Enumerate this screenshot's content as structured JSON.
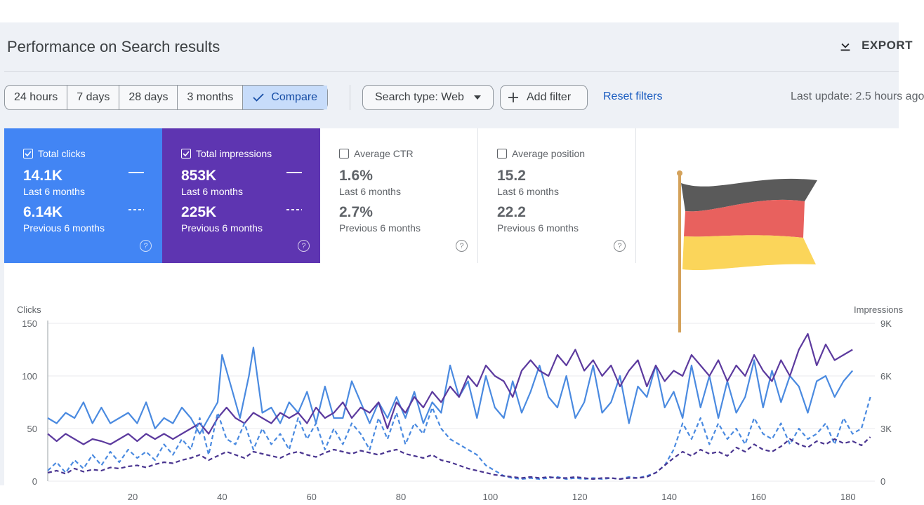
{
  "header": {
    "title": "Performance on Search results",
    "export_label": "EXPORT",
    "export_icon": "download-icon"
  },
  "toolbar": {
    "ranges": [
      "24 hours",
      "7 days",
      "28 days",
      "3 months"
    ],
    "compare_label": "Compare",
    "search_type_label": "Search type: Web",
    "add_filter_label": "Add filter",
    "reset_filters_label": "Reset filters",
    "last_update": "Last update: 2.5 hours ago"
  },
  "metrics": {
    "clicks": {
      "label": "Total clicks",
      "current": "14.1K",
      "current_period": "Last 6 months",
      "previous": "6.14K",
      "previous_period": "Previous 6 months",
      "checked": true,
      "color": "#4285f4"
    },
    "impressions": {
      "label": "Total impressions",
      "current": "853K",
      "current_period": "Last 6 months",
      "previous": "225K",
      "previous_period": "Previous 6 months",
      "checked": true,
      "color": "#5e35b1"
    },
    "ctr": {
      "label": "Average CTR",
      "current": "1.6%",
      "current_period": "Last 6 months",
      "previous": "2.7%",
      "previous_period": "Previous 6 months",
      "checked": false
    },
    "position": {
      "label": "Average position",
      "current": "15.2",
      "current_period": "Last 6 months",
      "previous": "22.2",
      "previous_period": "Previous 6 months",
      "checked": false
    }
  },
  "flag": {
    "name": "germany-flag-icon",
    "colors": [
      "#5a5a5a",
      "#e8615e",
      "#fbd55a"
    ],
    "pole": "#d4a25b"
  },
  "chart_data": {
    "type": "line",
    "y_left_label": "Clicks",
    "y_right_label": "Impressions",
    "y_left_ticks": [
      "150",
      "100",
      "50",
      "0"
    ],
    "y_right_ticks": [
      "9K",
      "6K",
      "3K",
      "0"
    ],
    "ylim": [
      0,
      150
    ],
    "xlim": [
      1,
      186
    ],
    "x_ticks": [
      20,
      40,
      60,
      80,
      100,
      120,
      140,
      160,
      180
    ],
    "series": [
      {
        "color": "#4a8ae0",
        "style": "solid",
        "x": [
          1,
          3,
          5,
          7,
          9,
          11,
          13,
          15,
          17,
          19,
          21,
          23,
          25,
          27,
          29,
          31,
          33,
          35,
          37,
          39,
          40,
          42,
          44,
          46,
          47,
          49,
          51,
          53,
          55,
          57,
          59,
          61,
          63,
          65,
          67,
          69,
          71,
          73,
          75,
          77,
          79,
          81,
          83,
          85,
          87,
          89,
          91,
          93,
          95,
          97,
          99,
          101,
          103,
          105,
          107,
          109,
          111,
          113,
          115,
          117,
          119,
          121,
          123,
          125,
          127,
          129,
          131,
          133,
          135,
          137,
          139,
          141,
          143,
          145,
          147,
          149,
          151,
          153,
          155,
          157,
          159,
          161,
          163,
          165,
          167,
          169,
          171,
          173,
          175,
          177,
          179,
          181
        ],
        "y": [
          60,
          55,
          65,
          60,
          75,
          55,
          70,
          55,
          60,
          65,
          55,
          75,
          50,
          60,
          55,
          70,
          60,
          45,
          60,
          75,
          120,
          90,
          60,
          100,
          127,
          65,
          70,
          55,
          75,
          65,
          85,
          55,
          90,
          60,
          60,
          95,
          75,
          55,
          75,
          60,
          80,
          60,
          85,
          55,
          75,
          65,
          110,
          80,
          95,
          60,
          100,
          70,
          60,
          95,
          65,
          85,
          110,
          80,
          70,
          100,
          60,
          75,
          110,
          65,
          75,
          100,
          55,
          90,
          80,
          110,
          70,
          85,
          60,
          110,
          70,
          100,
          60,
          95,
          65,
          80,
          115,
          70,
          105,
          75,
          100,
          90,
          65,
          95,
          100,
          80,
          95,
          105
        ]
      },
      {
        "color": "#5c3a9e",
        "style": "solid",
        "x": [
          1,
          3,
          5,
          7,
          9,
          11,
          13,
          15,
          17,
          19,
          21,
          23,
          25,
          27,
          29,
          31,
          33,
          35,
          37,
          39,
          41,
          43,
          45,
          47,
          49,
          51,
          53,
          55,
          57,
          59,
          61,
          63,
          65,
          67,
          69,
          71,
          73,
          75,
          77,
          79,
          81,
          83,
          85,
          87,
          89,
          91,
          93,
          95,
          97,
          99,
          101,
          103,
          105,
          107,
          109,
          111,
          113,
          115,
          117,
          119,
          121,
          123,
          125,
          127,
          129,
          131,
          133,
          135,
          137,
          139,
          141,
          143,
          145,
          147,
          149,
          151,
          153,
          155,
          157,
          159,
          161,
          163,
          165,
          167,
          169,
          171,
          173,
          175,
          177,
          179,
          181
        ],
        "y": [
          45,
          38,
          45,
          40,
          35,
          40,
          38,
          35,
          40,
          45,
          38,
          45,
          40,
          45,
          40,
          45,
          50,
          55,
          45,
          60,
          70,
          60,
          55,
          65,
          60,
          55,
          65,
          60,
          65,
          55,
          70,
          60,
          65,
          75,
          60,
          70,
          65,
          75,
          50,
          75,
          65,
          80,
          70,
          85,
          75,
          90,
          80,
          100,
          90,
          110,
          100,
          95,
          80,
          105,
          115,
          105,
          100,
          120,
          110,
          125,
          105,
          115,
          100,
          110,
          90,
          105,
          115,
          90,
          110,
          95,
          105,
          100,
          120,
          110,
          100,
          115,
          95,
          110,
          100,
          120,
          105,
          95,
          115,
          100,
          125,
          140,
          110,
          130,
          115,
          120,
          125
        ]
      },
      {
        "color": "#4a8ae0",
        "style": "dashed",
        "x": [
          1,
          3,
          5,
          7,
          9,
          11,
          13,
          15,
          17,
          19,
          21,
          23,
          25,
          27,
          29,
          31,
          33,
          35,
          37,
          39,
          41,
          43,
          45,
          47,
          49,
          51,
          53,
          55,
          57,
          59,
          61,
          63,
          65,
          67,
          69,
          71,
          73,
          75,
          77,
          79,
          81,
          83,
          85,
          87,
          89,
          91,
          93,
          95,
          97,
          99,
          101,
          103,
          105,
          107,
          109,
          111,
          113,
          115,
          117,
          119,
          121,
          123,
          125,
          127,
          129,
          131,
          133,
          135,
          137,
          139,
          141,
          143,
          145,
          147,
          149,
          151,
          153,
          155,
          157,
          159,
          161,
          163,
          165,
          167,
          169,
          171,
          173,
          175,
          177,
          179,
          181,
          183,
          185
        ],
        "y": [
          10,
          18,
          8,
          20,
          12,
          25,
          15,
          28,
          18,
          30,
          22,
          28,
          20,
          35,
          25,
          40,
          30,
          60,
          25,
          65,
          40,
          35,
          55,
          30,
          50,
          35,
          45,
          30,
          60,
          40,
          55,
          30,
          50,
          35,
          55,
          45,
          30,
          60,
          40,
          65,
          35,
          55,
          45,
          70,
          50,
          40,
          35,
          30,
          25,
          15,
          10,
          5,
          3,
          2,
          3,
          2,
          3,
          4,
          2,
          3,
          2,
          3,
          2,
          3,
          2,
          4,
          3,
          5,
          8,
          15,
          30,
          55,
          40,
          60,
          35,
          55,
          40,
          50,
          35,
          60,
          45,
          40,
          55,
          35,
          50,
          40,
          45,
          55,
          35,
          60,
          45,
          50,
          80
        ]
      },
      {
        "color": "#4a3590",
        "style": "dashed",
        "x": [
          1,
          3,
          5,
          7,
          9,
          11,
          13,
          15,
          17,
          19,
          21,
          23,
          25,
          27,
          29,
          31,
          33,
          35,
          37,
          39,
          41,
          43,
          45,
          47,
          49,
          51,
          53,
          55,
          57,
          59,
          61,
          63,
          65,
          67,
          69,
          71,
          73,
          75,
          77,
          79,
          81,
          83,
          85,
          87,
          89,
          91,
          93,
          95,
          97,
          99,
          101,
          103,
          105,
          107,
          109,
          111,
          113,
          115,
          117,
          119,
          121,
          123,
          125,
          127,
          129,
          131,
          133,
          135,
          137,
          139,
          141,
          143,
          145,
          147,
          149,
          151,
          153,
          155,
          157,
          159,
          161,
          163,
          165,
          167,
          169,
          171,
          173,
          175,
          177,
          179,
          181,
          183,
          185
        ],
        "y": [
          8,
          10,
          7,
          12,
          9,
          11,
          10,
          13,
          12,
          14,
          15,
          13,
          16,
          18,
          17,
          20,
          22,
          25,
          20,
          24,
          28,
          25,
          22,
          28,
          26,
          24,
          22,
          26,
          28,
          25,
          23,
          27,
          30,
          28,
          26,
          29,
          27,
          25,
          28,
          30,
          26,
          24,
          22,
          25,
          20,
          18,
          15,
          12,
          10,
          8,
          6,
          5,
          4,
          3,
          4,
          3,
          4,
          3,
          3,
          4,
          3,
          2,
          3,
          3,
          2,
          3,
          3,
          4,
          8,
          15,
          22,
          28,
          24,
          30,
          26,
          28,
          24,
          32,
          28,
          35,
          30,
          28,
          33,
          40,
          35,
          32,
          38,
          35,
          40,
          36,
          38,
          34,
          42
        ]
      }
    ]
  }
}
